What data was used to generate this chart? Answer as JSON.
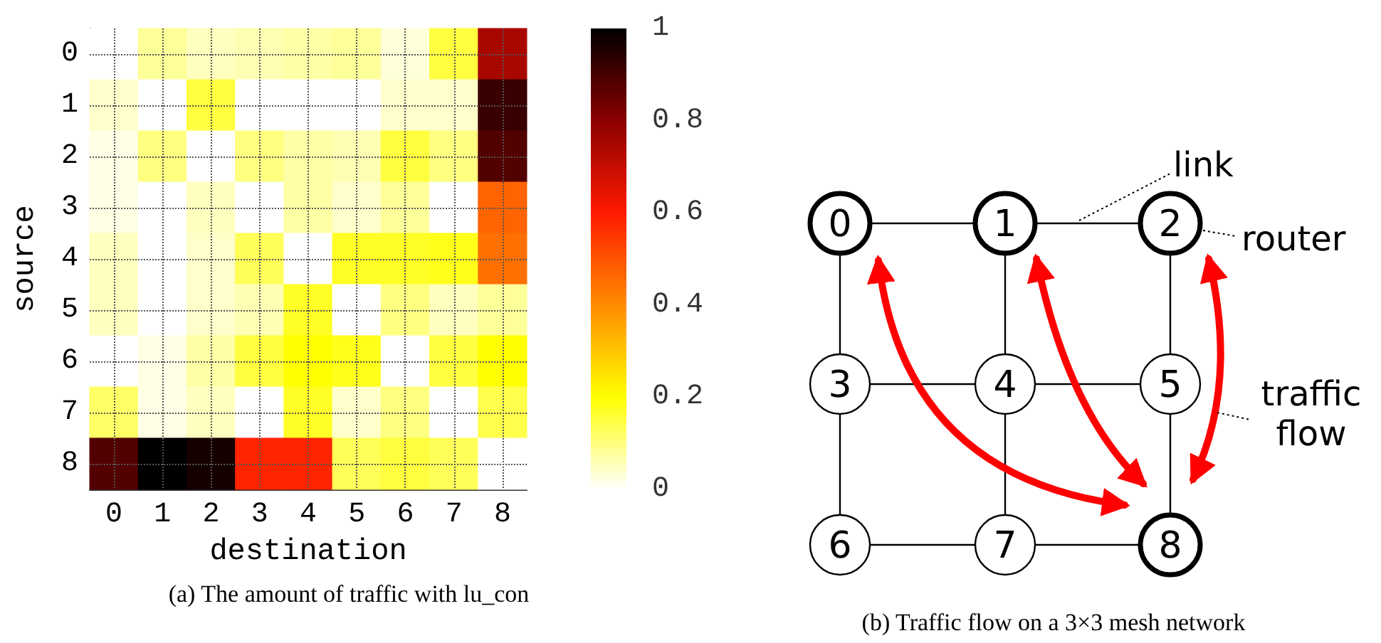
{
  "chart_data": [
    {
      "type": "heatmap",
      "title": "(a) The amount of traffic with lu_con",
      "xlabel": "destination",
      "ylabel": "source",
      "categories": [
        "0",
        "1",
        "2",
        "3",
        "4",
        "5",
        "6",
        "7",
        "8"
      ],
      "y_categories": [
        "0",
        "1",
        "2",
        "3",
        "4",
        "5",
        "6",
        "7",
        "8"
      ],
      "cells": [
        [
          0,
          0.08,
          0.05,
          0.06,
          0.07,
          0.08,
          0.03,
          0.15,
          0.75
        ],
        [
          0.04,
          0,
          0.15,
          0,
          0,
          0,
          0.04,
          0.04,
          0.92
        ],
        [
          0.02,
          0.1,
          0,
          0.1,
          0.07,
          0.06,
          0.15,
          0.1,
          0.88
        ],
        [
          0.02,
          0,
          0.05,
          0,
          0.07,
          0.04,
          0.08,
          0,
          0.47
        ],
        [
          0.05,
          0,
          0.04,
          0.13,
          0,
          0.17,
          0.17,
          0.18,
          0.45
        ],
        [
          0.05,
          0,
          0.04,
          0.06,
          0.17,
          0,
          0.1,
          0.05,
          0.08
        ],
        [
          0,
          0.02,
          0.07,
          0.15,
          0.2,
          0.18,
          0,
          0.15,
          0.2
        ],
        [
          0.12,
          0.02,
          0.05,
          0,
          0.17,
          0.04,
          0.1,
          0,
          0.14
        ],
        [
          0.88,
          1,
          0.97,
          0.58,
          0.58,
          0.13,
          0.15,
          0.13,
          0
        ]
      ],
      "clim": [
        0,
        1
      ],
      "cticks": [
        0,
        0.2,
        0.4,
        0.6,
        0.8,
        1
      ],
      "grid": true
    },
    {
      "type": "other",
      "title": "(b) Traffic flow on a 3×3 mesh network",
      "annotations": [
        "0",
        "1",
        "2",
        "3",
        "4",
        "5",
        "6",
        "7",
        "8",
        "link",
        "router",
        "traffic flow"
      ]
    }
  ]
}
